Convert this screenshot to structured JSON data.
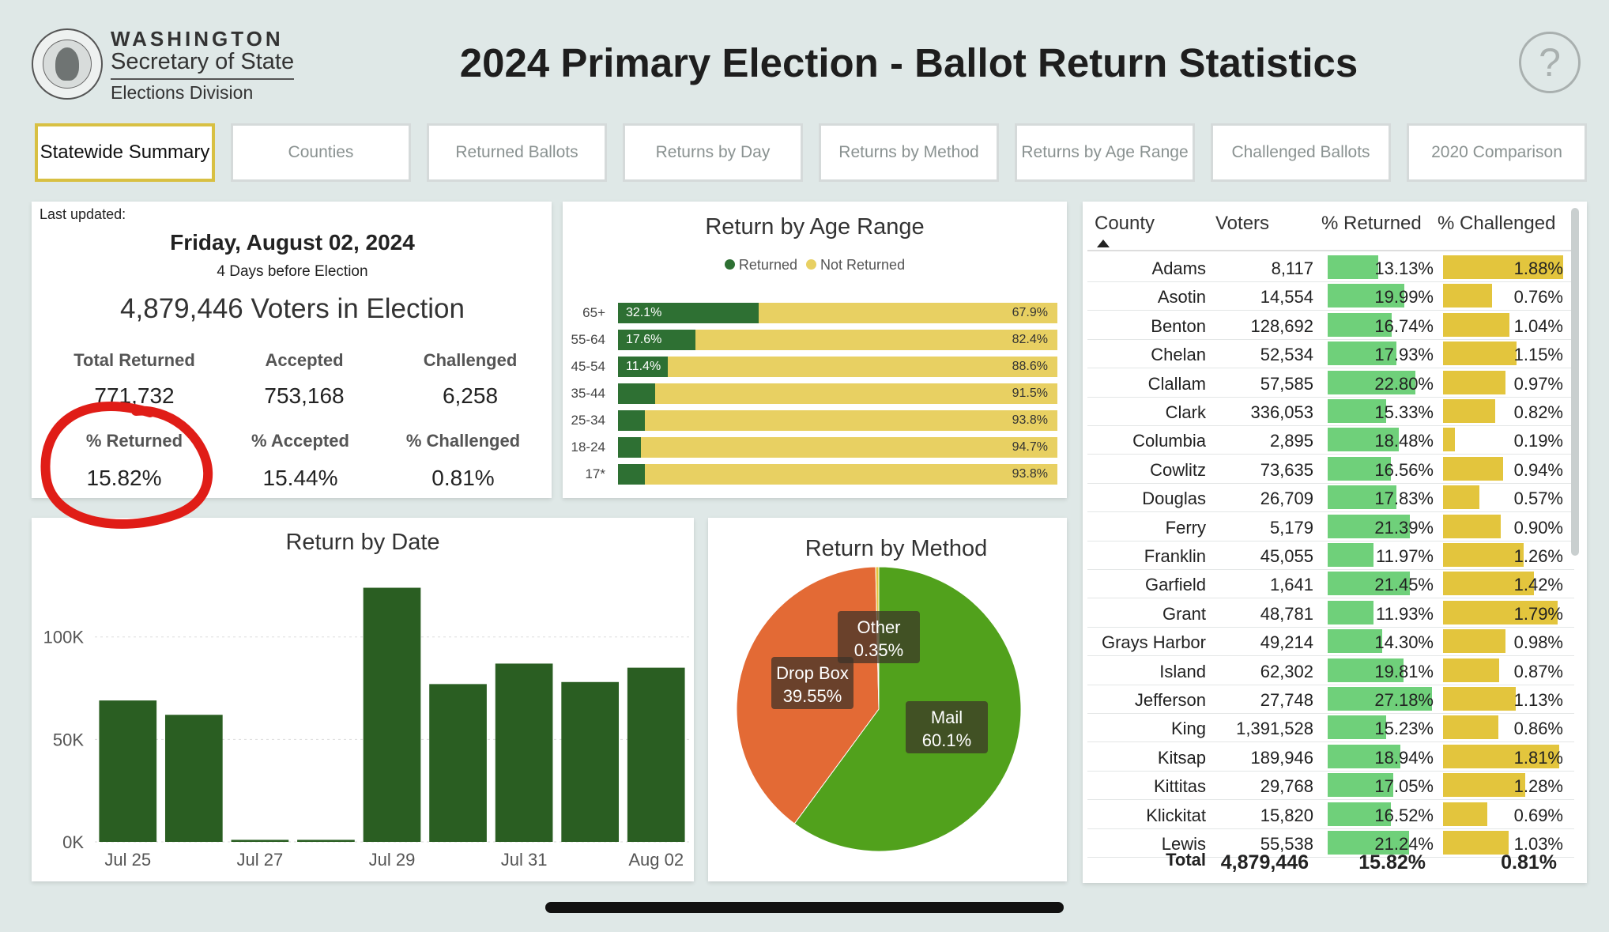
{
  "header": {
    "org_line1": "WASHINGTON",
    "org_line2": "Secretary of State",
    "org_line3": "Elections Division",
    "title": "2024 Primary Election - Ballot Return Statistics",
    "help_icon": "?"
  },
  "tabs": [
    {
      "label": "Statewide Summary",
      "active": true
    },
    {
      "label": "Counties"
    },
    {
      "label": "Returned Ballots"
    },
    {
      "label": "Returns by Day"
    },
    {
      "label": "Returns by Method"
    },
    {
      "label": "Returns by Age Range"
    },
    {
      "label": "Challenged Ballots"
    },
    {
      "label": "2020 Comparison"
    }
  ],
  "summary": {
    "last_updated_label": "Last updated:",
    "date": "Friday, August 02, 2024",
    "days_before": "4 Days before Election",
    "voters_count": "4,879,446",
    "voters_label": "Voters in Election",
    "total_returned_label": "Total Returned",
    "total_returned": "771,732",
    "accepted_label": "Accepted",
    "accepted": "753,168",
    "challenged_label": "Challenged",
    "challenged": "6,258",
    "pct_returned_label": "% Returned",
    "pct_returned": "15.82%",
    "pct_accepted_label": "% Accepted",
    "pct_accepted": "15.44%",
    "pct_challenged_label": "% Challenged",
    "pct_challenged": "0.81%"
  },
  "age_chart": {
    "title": "Return by Age Range",
    "legend_returned": "Returned",
    "legend_not_returned": "Not Returned",
    "colors": {
      "returned": "#2e7033",
      "not_returned": "#e8d062"
    },
    "rows": [
      {
        "label": "65+",
        "returned": 32.1,
        "returned_label": "32.1%",
        "not_returned_label": "67.9%"
      },
      {
        "label": "55-64",
        "returned": 17.6,
        "returned_label": "17.6%",
        "not_returned_label": "82.4%"
      },
      {
        "label": "45-54",
        "returned": 11.4,
        "returned_label": "11.4%",
        "not_returned_label": "88.6%"
      },
      {
        "label": "35-44",
        "returned": 8.5,
        "returned_label": "",
        "not_returned_label": "91.5%"
      },
      {
        "label": "25-34",
        "returned": 6.2,
        "returned_label": "",
        "not_returned_label": "93.8%"
      },
      {
        "label": "18-24",
        "returned": 5.3,
        "returned_label": "",
        "not_returned_label": "94.7%"
      },
      {
        "label": "17*",
        "returned": 6.2,
        "returned_label": "",
        "not_returned_label": "93.8%"
      }
    ]
  },
  "chart_data": [
    {
      "type": "bar",
      "title": "Return by Date",
      "categories": [
        "Jul 25",
        "Jul 26",
        "Jul 27",
        "Jul 28",
        "Jul 29",
        "Jul 30",
        "Jul 31",
        "Aug 01",
        "Aug 02"
      ],
      "tick_labels": [
        "Jul 25",
        "",
        "Jul 27",
        "",
        "Jul 29",
        "",
        "Jul 31",
        "",
        "Aug 02"
      ],
      "values": [
        69000,
        62000,
        1000,
        1000,
        124000,
        77000,
        87000,
        78000,
        85000
      ],
      "yticks": [
        0,
        50000,
        100000
      ],
      "ytick_labels": [
        "0K",
        "50K",
        "100K"
      ],
      "ylim": [
        0,
        135000
      ],
      "color": "#2a5e22"
    },
    {
      "type": "pie",
      "title": "Return by Method",
      "slices": [
        {
          "name": "Mail",
          "value": 60.1,
          "label": "60.1%",
          "color": "#51a11c"
        },
        {
          "name": "Drop Box",
          "value": 39.55,
          "label": "39.55%",
          "color": "#e36a35"
        },
        {
          "name": "Other",
          "value": 0.35,
          "label": "0.35%",
          "color": "#e4c43b"
        }
      ]
    }
  ],
  "county_table": {
    "columns": [
      "County",
      "Voters",
      "% Returned",
      "% Challenged"
    ],
    "rows": [
      {
        "county": "Adams",
        "voters": "8,117",
        "returned": 13.13,
        "returned_label": "13.13%",
        "challenged": 1.88,
        "challenged_label": "1.88%"
      },
      {
        "county": "Asotin",
        "voters": "14,554",
        "returned": 19.99,
        "returned_label": "19.99%",
        "challenged": 0.76,
        "challenged_label": "0.76%"
      },
      {
        "county": "Benton",
        "voters": "128,692",
        "returned": 16.74,
        "returned_label": "16.74%",
        "challenged": 1.04,
        "challenged_label": "1.04%"
      },
      {
        "county": "Chelan",
        "voters": "52,534",
        "returned": 17.93,
        "returned_label": "17.93%",
        "challenged": 1.15,
        "challenged_label": "1.15%"
      },
      {
        "county": "Clallam",
        "voters": "57,585",
        "returned": 22.8,
        "returned_label": "22.80%",
        "challenged": 0.97,
        "challenged_label": "0.97%"
      },
      {
        "county": "Clark",
        "voters": "336,053",
        "returned": 15.33,
        "returned_label": "15.33%",
        "challenged": 0.82,
        "challenged_label": "0.82%"
      },
      {
        "county": "Columbia",
        "voters": "2,895",
        "returned": 18.48,
        "returned_label": "18.48%",
        "challenged": 0.19,
        "challenged_label": "0.19%"
      },
      {
        "county": "Cowlitz",
        "voters": "73,635",
        "returned": 16.56,
        "returned_label": "16.56%",
        "challenged": 0.94,
        "challenged_label": "0.94%"
      },
      {
        "county": "Douglas",
        "voters": "26,709",
        "returned": 17.83,
        "returned_label": "17.83%",
        "challenged": 0.57,
        "challenged_label": "0.57%"
      },
      {
        "county": "Ferry",
        "voters": "5,179",
        "returned": 21.39,
        "returned_label": "21.39%",
        "challenged": 0.9,
        "challenged_label": "0.90%"
      },
      {
        "county": "Franklin",
        "voters": "45,055",
        "returned": 11.97,
        "returned_label": "11.97%",
        "challenged": 1.26,
        "challenged_label": "1.26%"
      },
      {
        "county": "Garfield",
        "voters": "1,641",
        "returned": 21.45,
        "returned_label": "21.45%",
        "challenged": 1.42,
        "challenged_label": "1.42%"
      },
      {
        "county": "Grant",
        "voters": "48,781",
        "returned": 11.93,
        "returned_label": "11.93%",
        "challenged": 1.79,
        "challenged_label": "1.79%"
      },
      {
        "county": "Grays Harbor",
        "voters": "49,214",
        "returned": 14.3,
        "returned_label": "14.30%",
        "challenged": 0.98,
        "challenged_label": "0.98%"
      },
      {
        "county": "Island",
        "voters": "62,302",
        "returned": 19.81,
        "returned_label": "19.81%",
        "challenged": 0.87,
        "challenged_label": "0.87%"
      },
      {
        "county": "Jefferson",
        "voters": "27,748",
        "returned": 27.18,
        "returned_label": "27.18%",
        "challenged": 1.13,
        "challenged_label": "1.13%"
      },
      {
        "county": "King",
        "voters": "1,391,528",
        "returned": 15.23,
        "returned_label": "15.23%",
        "challenged": 0.86,
        "challenged_label": "0.86%"
      },
      {
        "county": "Kitsap",
        "voters": "189,946",
        "returned": 18.94,
        "returned_label": "18.94%",
        "challenged": 1.81,
        "challenged_label": "1.81%"
      },
      {
        "county": "Kittitas",
        "voters": "29,768",
        "returned": 17.05,
        "returned_label": "17.05%",
        "challenged": 1.28,
        "challenged_label": "1.28%"
      },
      {
        "county": "Klickitat",
        "voters": "15,820",
        "returned": 16.52,
        "returned_label": "16.52%",
        "challenged": 0.69,
        "challenged_label": "0.69%"
      },
      {
        "county": "Lewis",
        "voters": "55,538",
        "returned": 21.24,
        "returned_label": "21.24%",
        "challenged": 1.03,
        "challenged_label": "1.03%"
      }
    ],
    "total_label": "Total",
    "total_voters": "4,879,446",
    "total_returned": "15.82%",
    "total_challenged": "0.81%"
  }
}
